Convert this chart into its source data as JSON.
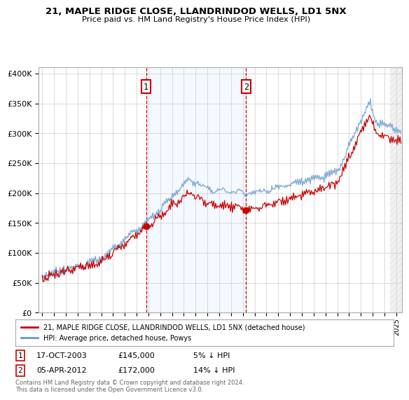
{
  "title_line1": "21, MAPLE RIDGE CLOSE, LLANDRINDOD WELLS, LD1 5NX",
  "title_line2": "Price paid vs. HM Land Registry's House Price Index (HPI)",
  "ylabel_ticks": [
    "£0",
    "£50K",
    "£100K",
    "£150K",
    "£200K",
    "£250K",
    "£300K",
    "£350K",
    "£400K"
  ],
  "ytick_vals": [
    0,
    50000,
    100000,
    150000,
    200000,
    250000,
    300000,
    350000,
    400000
  ],
  "ylim": [
    0,
    410000
  ],
  "xlim_start": 1994.7,
  "xlim_end": 2025.5,
  "legend_line1": "21, MAPLE RIDGE CLOSE, LLANDRINDOD WELLS, LD1 5NX (detached house)",
  "legend_line2": "HPI: Average price, detached house, Powys",
  "marker1_date": "17-OCT-2003",
  "marker1_price": "£145,000",
  "marker1_rel": "5% ↓ HPI",
  "marker2_date": "05-APR-2012",
  "marker2_price": "£172,000",
  "marker2_rel": "14% ↓ HPI",
  "footer": "Contains HM Land Registry data © Crown copyright and database right 2024.\nThis data is licensed under the Open Government Licence v3.0.",
  "color_red": "#cc0000",
  "color_blue": "#6699cc",
  "color_highlight": "#ddeeff",
  "background_color": "#ffffff",
  "grid_color": "#cccccc",
  "marker1_x": 2003.8,
  "marker2_x": 2012.27,
  "hatch_start": 2024.5
}
